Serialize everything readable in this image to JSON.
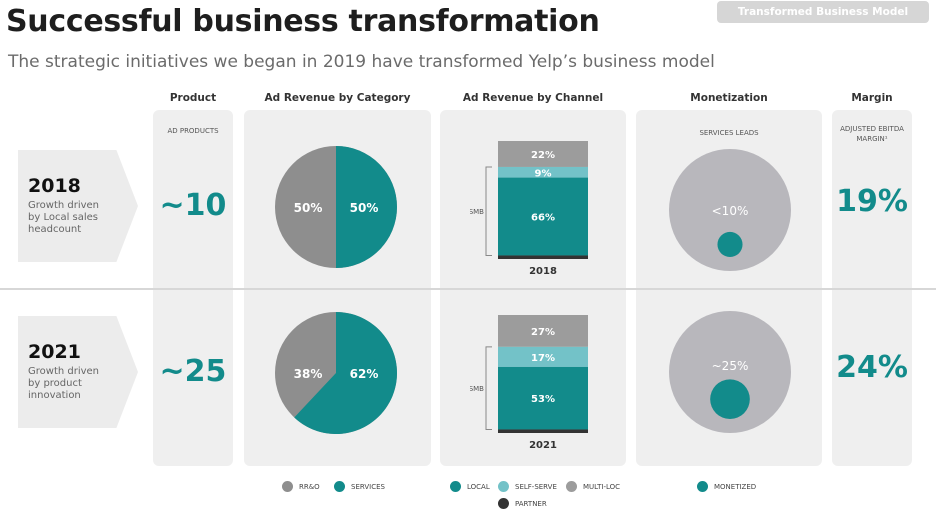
{
  "header": {
    "title": "Successful business transformation",
    "subtitle": "The strategic initiatives we began in 2019 have transformed Yelp’s business model",
    "badge": "Transformed Business Model"
  },
  "columns": {
    "product": "Product",
    "ad_revenue_category": "Ad Revenue by Category",
    "ad_revenue_channel": "Ad Revenue by Channel",
    "monetization": "Monetization",
    "margin": "Margin"
  },
  "subheads": {
    "ad_products": "AD PRODUCTS",
    "services_leads": "SERVICES LEADS",
    "adjusted_ebitda": "ADJUSTED EBITDA MARGIN¹"
  },
  "rows": [
    {
      "year": "2018",
      "desc": [
        "Growth driven",
        "by Local sales",
        "headcount"
      ],
      "products": "~10",
      "category": {
        "rro_pct": 50,
        "services_pct": 50,
        "rro_label": "50%",
        "services_label": "50%"
      },
      "channel": {
        "year": "2018",
        "smb_label": "SMB",
        "multiloc": 22,
        "selfserve": 9,
        "local": 66,
        "partner": 3,
        "multiloc_label": "22%",
        "selfserve_label": "9%",
        "local_label": "66%"
      },
      "monetization": {
        "label": "<10%",
        "monetized_fraction": 0.1
      },
      "margin": "19%"
    },
    {
      "year": "2021",
      "desc": [
        "Growth driven",
        "by product",
        "innovation"
      ],
      "products": "~25",
      "category": {
        "rro_pct": 38,
        "services_pct": 62,
        "rro_label": "38%",
        "services_label": "62%"
      },
      "channel": {
        "year": "2021",
        "smb_label": "SMB",
        "multiloc": 27,
        "selfserve": 17,
        "local": 53,
        "partner": 3,
        "multiloc_label": "27%",
        "selfserve_label": "17%",
        "local_label": "53%"
      },
      "monetization": {
        "label": "~25%",
        "monetized_fraction": 0.25
      },
      "margin": "24%"
    }
  ],
  "legends": {
    "category": [
      {
        "label": "RR&O",
        "color": "#8e8e8e"
      },
      {
        "label": "SERVICES",
        "color": "#128b8b"
      }
    ],
    "channel": [
      {
        "label": "LOCAL",
        "color": "#128b8b"
      },
      {
        "label": "SELF-SERVE",
        "color": "#73c2c8"
      },
      {
        "label": "MULTI-LOC",
        "color": "#9c9c9c"
      },
      {
        "label": "PARTNER",
        "color": "#333333"
      }
    ],
    "monetization": [
      {
        "label": "MONETIZED",
        "color": "#128b8b"
      }
    ]
  },
  "colors": {
    "teal": "#128b8b",
    "light_teal": "#73c2c8",
    "gray": "#9c9c9c",
    "pie_gray": "#8e8e8e",
    "partner": "#333333",
    "circle_gray": "#b8b7bc"
  }
}
